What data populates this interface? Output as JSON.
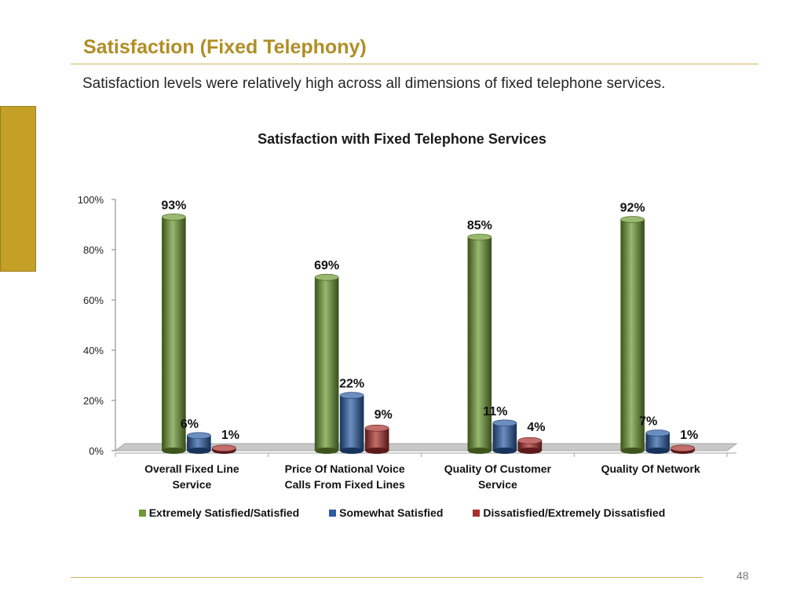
{
  "slide": {
    "title": "Satisfaction (Fixed Telephony)",
    "subtitle": "Satisfaction levels were relatively high  across all dimensions of fixed telephone services.",
    "page_number": "48"
  },
  "colors": {
    "accent": "#b08e26",
    "sidebar": "#c4a026",
    "rule": "#cdb35a"
  },
  "chart_data": {
    "type": "bar",
    "title": "Satisfaction with Fixed Telephone Services",
    "categories": [
      [
        "Overall Fixed Line",
        "Service"
      ],
      [
        "Price Of National Voice",
        "Calls From Fixed Lines"
      ],
      [
        "Quality Of Customer",
        "Service"
      ],
      [
        "Quality Of Network"
      ]
    ],
    "series": [
      {
        "name": "Extremely Satisfied/Satisfied",
        "color": "#6e9a33",
        "values": [
          93,
          69,
          85,
          92
        ]
      },
      {
        "name": "Somewhat Satisfied",
        "color": "#2c5da6",
        "values": [
          6,
          22,
          11,
          7
        ]
      },
      {
        "name": "Dissatisfied/Extremely Dissatisfied",
        "color": "#a8302c",
        "values": [
          1,
          9,
          4,
          1
        ]
      }
    ],
    "value_labels": [
      [
        "93%",
        "6%",
        "1%"
      ],
      [
        "69%",
        "22%",
        "9%"
      ],
      [
        "85%",
        "11%",
        "4%"
      ],
      [
        "92%",
        "7%",
        "1%"
      ]
    ],
    "ylim": [
      0,
      100
    ],
    "yticks": [
      "0%",
      "20%",
      "40%",
      "60%",
      "80%",
      "100%"
    ],
    "legend_position": "bottom",
    "grid": false
  }
}
